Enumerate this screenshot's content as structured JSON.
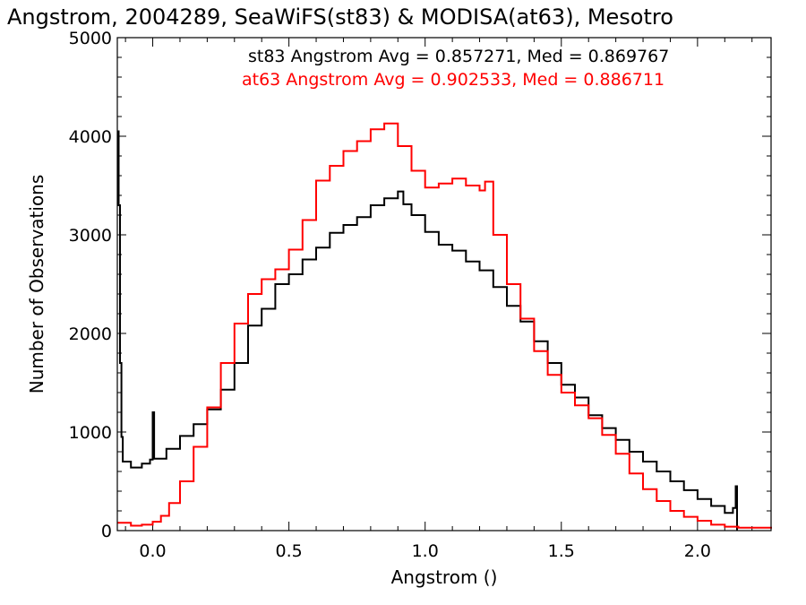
{
  "chart_data": {
    "type": "line",
    "title": "Angstrom, 2004289, SeaWiFS(st83) & MODISA(at63), Mesotro",
    "xlabel": "Angstrom ()",
    "ylabel": "Number of Observations",
    "xlim": [
      -0.13,
      2.27
    ],
    "ylim": [
      0,
      5000
    ],
    "x_ticks": [
      "0.0",
      "0.5",
      "1.0",
      "1.5",
      "2.0"
    ],
    "y_ticks": [
      "0",
      "1000",
      "2000",
      "3000",
      "4000",
      "5000"
    ],
    "grid": false,
    "legend_position": "top-right",
    "annotations": [
      "st83 Angstrom Avg = 0.857271, Med = 0.869767",
      "at63 Angstrom Avg = 0.902533, Med = 0.886711"
    ],
    "series": [
      {
        "color": "#000000",
        "points": [
          [
            -0.13,
            4050
          ],
          [
            -0.125,
            3300
          ],
          [
            -0.12,
            1700
          ],
          [
            -0.115,
            950
          ],
          [
            -0.11,
            700
          ],
          [
            -0.08,
            640
          ],
          [
            -0.04,
            680
          ],
          [
            -0.01,
            720
          ],
          [
            0.0,
            1200
          ],
          [
            0.005,
            730
          ],
          [
            0.05,
            830
          ],
          [
            0.1,
            960
          ],
          [
            0.15,
            1080
          ],
          [
            0.2,
            1230
          ],
          [
            0.25,
            1430
          ],
          [
            0.3,
            1700
          ],
          [
            0.35,
            2080
          ],
          [
            0.4,
            2250
          ],
          [
            0.45,
            2500
          ],
          [
            0.5,
            2600
          ],
          [
            0.55,
            2750
          ],
          [
            0.6,
            2870
          ],
          [
            0.65,
            3020
          ],
          [
            0.7,
            3100
          ],
          [
            0.75,
            3180
          ],
          [
            0.8,
            3300
          ],
          [
            0.85,
            3370
          ],
          [
            0.9,
            3440
          ],
          [
            0.92,
            3310
          ],
          [
            0.95,
            3200
          ],
          [
            1.0,
            3030
          ],
          [
            1.05,
            2900
          ],
          [
            1.1,
            2840
          ],
          [
            1.15,
            2730
          ],
          [
            1.2,
            2640
          ],
          [
            1.25,
            2470
          ],
          [
            1.3,
            2280
          ],
          [
            1.35,
            2120
          ],
          [
            1.4,
            1920
          ],
          [
            1.45,
            1700
          ],
          [
            1.5,
            1480
          ],
          [
            1.55,
            1350
          ],
          [
            1.6,
            1170
          ],
          [
            1.65,
            1040
          ],
          [
            1.7,
            920
          ],
          [
            1.75,
            800
          ],
          [
            1.8,
            700
          ],
          [
            1.85,
            600
          ],
          [
            1.9,
            500
          ],
          [
            1.95,
            410
          ],
          [
            2.0,
            320
          ],
          [
            2.05,
            250
          ],
          [
            2.1,
            180
          ],
          [
            2.13,
            230
          ],
          [
            2.14,
            450
          ],
          [
            2.145,
            0
          ]
        ]
      },
      {
        "color": "#ff0000",
        "points": [
          [
            -0.13,
            80
          ],
          [
            -0.08,
            50
          ],
          [
            -0.04,
            60
          ],
          [
            0.0,
            90
          ],
          [
            0.03,
            150
          ],
          [
            0.06,
            280
          ],
          [
            0.1,
            500
          ],
          [
            0.15,
            850
          ],
          [
            0.2,
            1250
          ],
          [
            0.25,
            1700
          ],
          [
            0.3,
            2100
          ],
          [
            0.35,
            2400
          ],
          [
            0.4,
            2550
          ],
          [
            0.45,
            2650
          ],
          [
            0.5,
            2850
          ],
          [
            0.55,
            3150
          ],
          [
            0.6,
            3550
          ],
          [
            0.65,
            3700
          ],
          [
            0.7,
            3850
          ],
          [
            0.75,
            3950
          ],
          [
            0.8,
            4070
          ],
          [
            0.85,
            4130
          ],
          [
            0.9,
            3900
          ],
          [
            0.95,
            3650
          ],
          [
            1.0,
            3480
          ],
          [
            1.05,
            3520
          ],
          [
            1.1,
            3570
          ],
          [
            1.15,
            3500
          ],
          [
            1.2,
            3450
          ],
          [
            1.22,
            3540
          ],
          [
            1.25,
            3000
          ],
          [
            1.3,
            2500
          ],
          [
            1.35,
            2150
          ],
          [
            1.4,
            1820
          ],
          [
            1.45,
            1580
          ],
          [
            1.5,
            1400
          ],
          [
            1.55,
            1270
          ],
          [
            1.6,
            1140
          ],
          [
            1.65,
            970
          ],
          [
            1.7,
            780
          ],
          [
            1.75,
            580
          ],
          [
            1.8,
            420
          ],
          [
            1.85,
            300
          ],
          [
            1.9,
            200
          ],
          [
            1.95,
            140
          ],
          [
            2.0,
            100
          ],
          [
            2.05,
            60
          ],
          [
            2.1,
            40
          ],
          [
            2.15,
            30
          ],
          [
            2.27,
            20
          ]
        ]
      }
    ]
  }
}
